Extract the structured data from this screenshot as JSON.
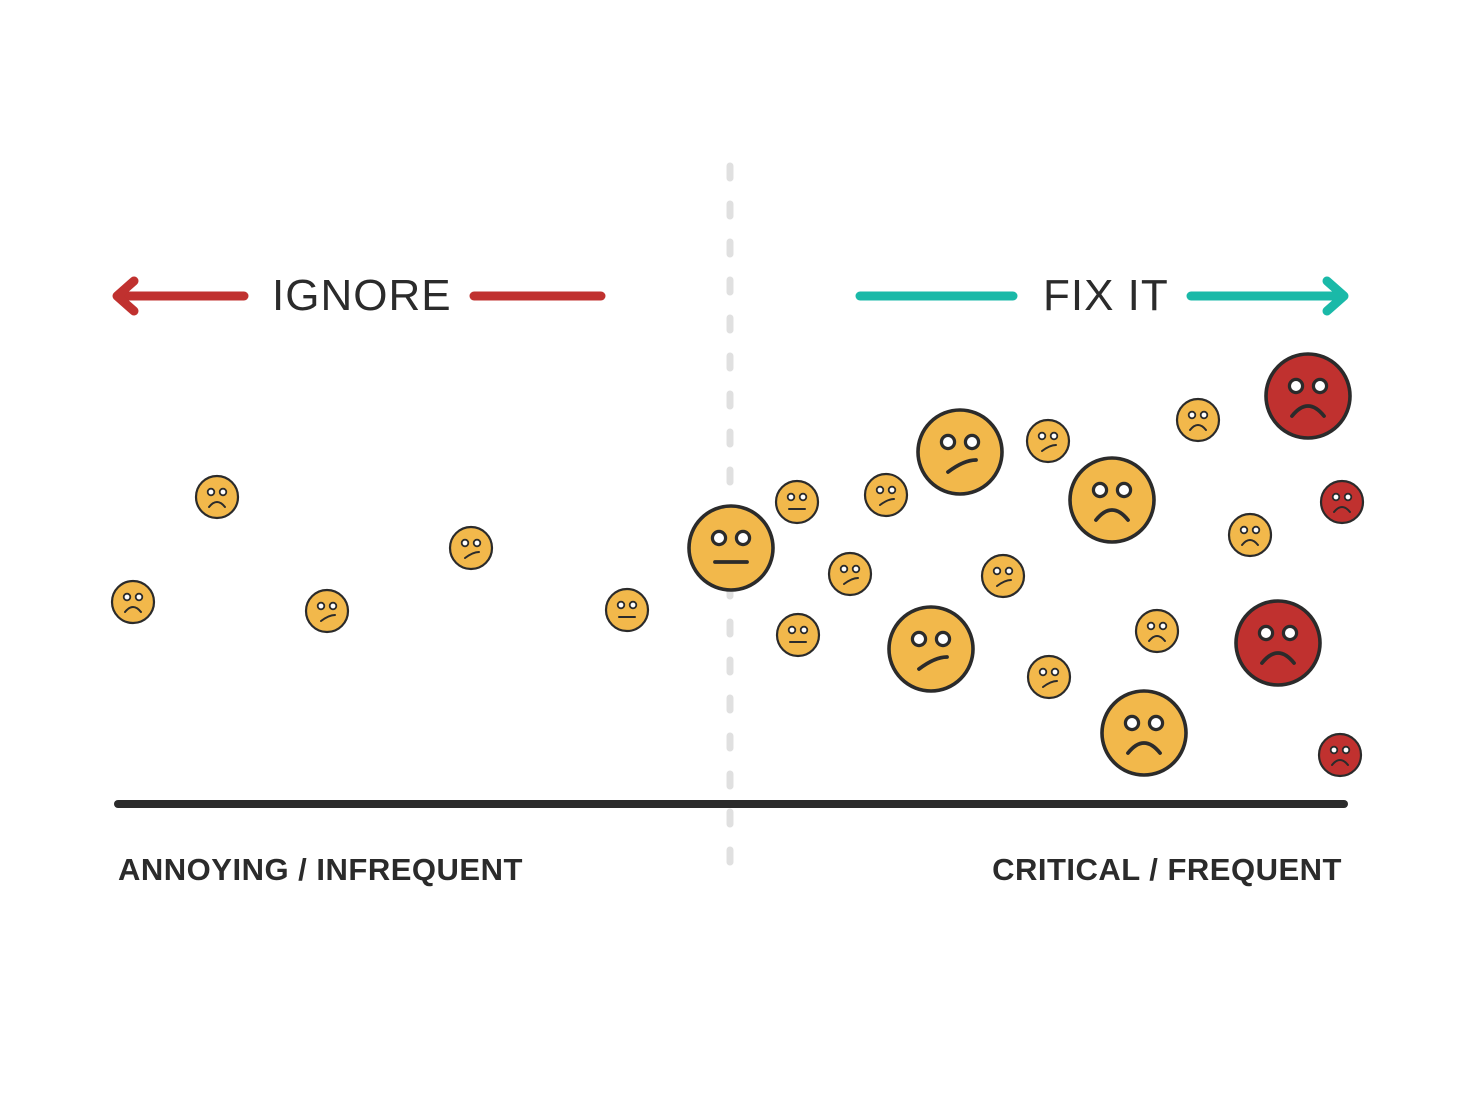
{
  "labels": {
    "ignore": "IGNORE",
    "fix_it": "FIX IT",
    "left_axis": "ANNOYING / INFREQUENT",
    "right_axis": "CRITICAL / FREQUENT"
  },
  "colors": {
    "ignore_red": "#c0312f",
    "fix_teal": "#1ab9a8",
    "face_yellow": "#f2b84b",
    "face_red": "#c0312f",
    "outline": "#2b2b2b",
    "divider": "#e0e0e0",
    "axis": "#2b2b2b"
  },
  "faces": [
    {
      "severity": "yellow",
      "mood": "sad",
      "scale": "small"
    },
    {
      "severity": "yellow",
      "mood": "sad",
      "scale": "small"
    },
    {
      "severity": "yellow",
      "mood": "unsure",
      "scale": "small"
    },
    {
      "severity": "yellow",
      "mood": "unsure",
      "scale": "small"
    },
    {
      "severity": "yellow",
      "mood": "neutral",
      "scale": "small"
    },
    {
      "severity": "yellow",
      "mood": "neutral",
      "scale": "large"
    },
    {
      "severity": "yellow",
      "mood": "neutral",
      "scale": "small"
    },
    {
      "severity": "yellow",
      "mood": "neutral",
      "scale": "small"
    },
    {
      "severity": "yellow",
      "mood": "unsure",
      "scale": "small"
    },
    {
      "severity": "yellow",
      "mood": "unsure",
      "scale": "small"
    },
    {
      "severity": "yellow",
      "mood": "unsure",
      "scale": "large"
    },
    {
      "severity": "yellow",
      "mood": "unsure",
      "scale": "large"
    },
    {
      "severity": "yellow",
      "mood": "unsure",
      "scale": "small"
    },
    {
      "severity": "yellow",
      "mood": "unsure",
      "scale": "small"
    },
    {
      "severity": "yellow",
      "mood": "unsure",
      "scale": "small"
    },
    {
      "severity": "yellow",
      "mood": "sad",
      "scale": "large"
    },
    {
      "severity": "yellow",
      "mood": "sad",
      "scale": "small"
    },
    {
      "severity": "yellow",
      "mood": "sad",
      "scale": "large"
    },
    {
      "severity": "yellow",
      "mood": "sad",
      "scale": "small"
    },
    {
      "severity": "yellow",
      "mood": "sad",
      "scale": "small"
    },
    {
      "severity": "red",
      "mood": "sad",
      "scale": "large"
    },
    {
      "severity": "red",
      "mood": "sad",
      "scale": "small"
    },
    {
      "severity": "red",
      "mood": "sad",
      "scale": "large"
    },
    {
      "severity": "red",
      "mood": "sad",
      "scale": "small"
    }
  ]
}
